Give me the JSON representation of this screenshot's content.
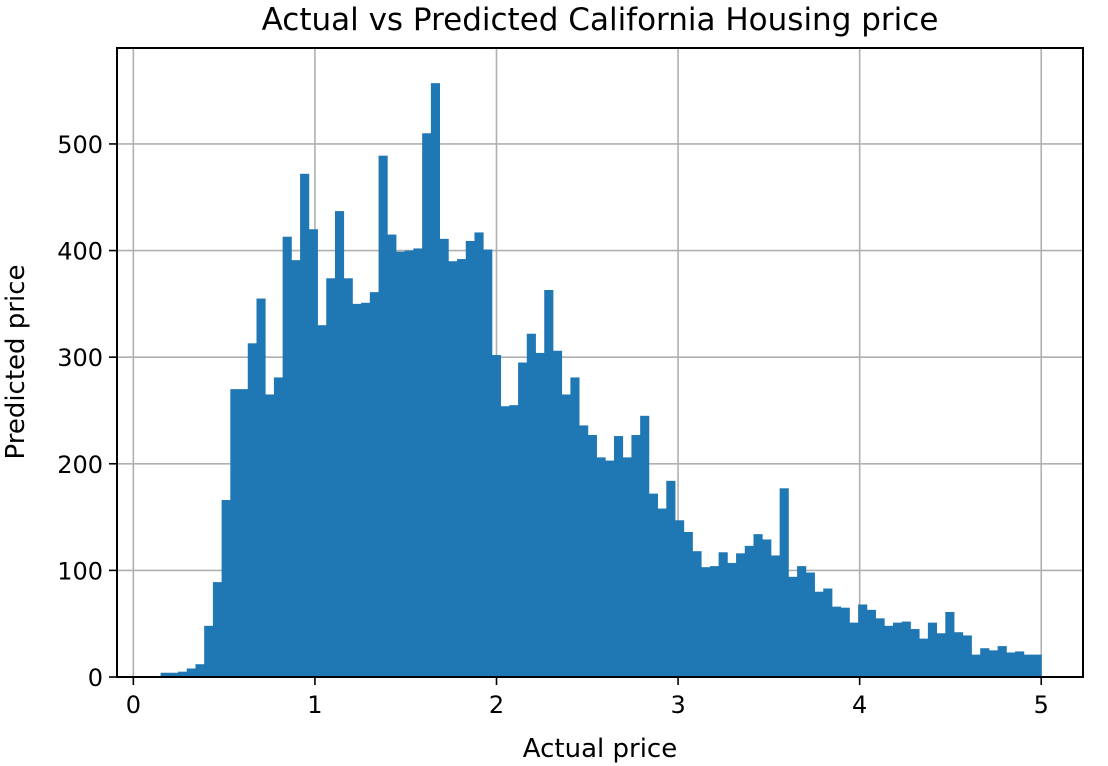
{
  "chart_data": {
    "type": "bar",
    "title": "Actual vs Predicted California Housing price",
    "xlabel": "Actual price",
    "ylabel": "Predicted price",
    "xlim": [
      -0.09,
      5.23
    ],
    "ylim": [
      0,
      590
    ],
    "xticks": [
      0,
      1,
      2,
      3,
      4,
      5
    ],
    "yticks": [
      0,
      100,
      200,
      300,
      400,
      500
    ],
    "grid": true,
    "bin_start": 0.15,
    "bin_end": 5.0,
    "color": "#1f77b4",
    "values": [
      4,
      4,
      5,
      8,
      12,
      48,
      89,
      166,
      270,
      270,
      313,
      355,
      265,
      281,
      413,
      391,
      472,
      420,
      330,
      374,
      437,
      374,
      350,
      351,
      361,
      489,
      415,
      399,
      400,
      402,
      510,
      557,
      411,
      390,
      392,
      409,
      417,
      401,
      302,
      254,
      255,
      295,
      322,
      304,
      363,
      306,
      265,
      281,
      236,
      227,
      206,
      203,
      226,
      206,
      227,
      245,
      172,
      158,
      184,
      147,
      136,
      118,
      103,
      104,
      117,
      107,
      116,
      123,
      134,
      129,
      114,
      177,
      94,
      104,
      98,
      80,
      83,
      66,
      65,
      51,
      68,
      63,
      55,
      48,
      51,
      52,
      45,
      36,
      51,
      41,
      61,
      42,
      39,
      21,
      27,
      25,
      29,
      23,
      24,
      21,
      21
    ]
  }
}
